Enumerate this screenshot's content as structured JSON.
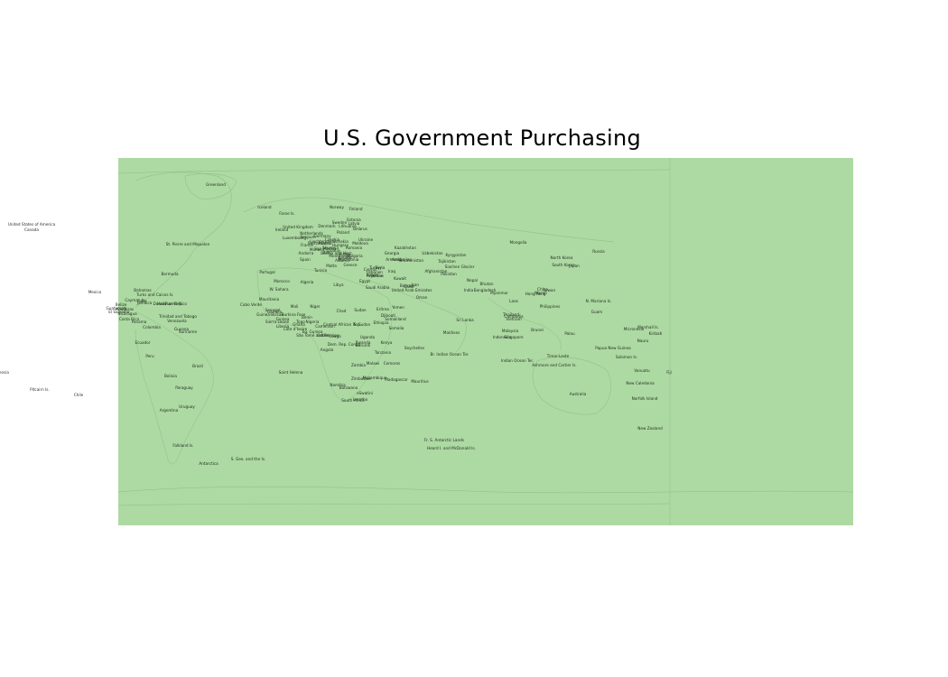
{
  "title": "U.S. Government Purchasing",
  "colors": {
    "map_fill": "#add9a3",
    "border_line": "#8fbb84",
    "label": "#1f2a1d"
  },
  "country_labels": [
    "Greenland",
    "Iceland",
    "Faroe Is.",
    "Norway",
    "Finland",
    "Estonia",
    "Latvia",
    "Lithuania",
    "Russia",
    "Sweden",
    "Denmark",
    "United Kingdom",
    "Ireland",
    "Netherlands",
    "Belgium",
    "Germany",
    "Poland",
    "Belarus",
    "Ukraine",
    "Moldova",
    "Luxembourg",
    "Czechia",
    "Slovakia",
    "Austria",
    "Hungary",
    "Romania",
    "France",
    "Switzerland",
    "Liechtenstein",
    "Slovenia",
    "Croatia",
    "Bosnia and Herz.",
    "Serbia",
    "Kosovo",
    "Montenegro",
    "Albania",
    "Macedonia",
    "Bulgaria",
    "Greece",
    "Italy",
    "San Marino",
    "Monaco",
    "Andorra",
    "Spain",
    "Portugal",
    "Malta",
    "Cyprus",
    "Turkey",
    "Georgia",
    "Armenia",
    "Azerbaijan",
    "Kazakhstan",
    "Uzbekistan",
    "Kyrgyzstan",
    "Tajikistan",
    "Turkmenistan",
    "Afghanistan",
    "Pakistan",
    "Siachen Glacier",
    "Nepal",
    "Bhutan",
    "Bangladesh",
    "India",
    "Sri Lanka",
    "Maldives",
    "Br. Indian Ocean Ter.",
    "Myanmar",
    "Laos",
    "Thailand",
    "Cambodia",
    "Vietnam",
    "Malaysia",
    "Singapore",
    "Indonesia",
    "Brunei",
    "Philippines",
    "Palau",
    "Taiwan",
    "Hong Kong",
    "Macao",
    "China",
    "Mongolia",
    "North Korea",
    "South Korea",
    "Japan",
    "N. Mariana Is.",
    "Guam",
    "Marshall Is.",
    "Micronesia",
    "Kiribati",
    "Nauru",
    "Solomon Is.",
    "Papua New Guinea",
    "Timor-Leste",
    "Ashmore and Cartier Is.",
    "Indian Ocean Ter.",
    "Australia",
    "Vanuatu",
    "New Caledonia",
    "Norfolk Island",
    "New Zealand",
    "Fiji",
    "Iran",
    "Iraq",
    "Syria",
    "Lebanon",
    "Israel",
    "Palestine",
    "Jordan",
    "Kuwait",
    "Saudi Arabia",
    "Bahrain",
    "Qatar",
    "United Arab Emirates",
    "Oman",
    "Yemen",
    "Egypt",
    "Libya",
    "Tunisia",
    "Algeria",
    "Morocco",
    "W. Sahara",
    "Mauritania",
    "Mali",
    "Niger",
    "Chad",
    "Sudan",
    "S. Sudan",
    "Eritrea",
    "Djibouti",
    "Ethiopia",
    "Somaliland",
    "Somalia",
    "Kenya",
    "Uganda",
    "Rwanda",
    "Burundi",
    "Tanzania",
    "Dem. Rep. Congo",
    "Congo",
    "Gabon",
    "Eq. Guinea",
    "Cameroon",
    "Central African Rep.",
    "Nigeria",
    "Benin",
    "Togo",
    "Ghana",
    "Burkina Faso",
    "Côte d'Ivoire",
    "Liberia",
    "Sierra Leone",
    "Guinea",
    "Guinea-Bissau",
    "Senegal",
    "Gambia",
    "Cabo Verde",
    "São Tomé and Principe",
    "Angola",
    "Zambia",
    "Malawi",
    "Mozambique",
    "Zimbabwe",
    "Botswana",
    "Namibia",
    "South Africa",
    "Lesotho",
    "eSwatini",
    "Madagascar",
    "Comoros",
    "Mauritius",
    "Seychelles",
    "Saint Helena",
    "Canada",
    "United States of America",
    "Mexico",
    "St. Pierre and Miquelon",
    "Bermuda",
    "Bahamas",
    "Turks and Caicos Is.",
    "Cuba",
    "Cayman Is.",
    "Jamaica",
    "Haiti",
    "Dominican Rep.",
    "Puerto Rico",
    "Belize",
    "Guatemala",
    "Honduras",
    "El Salvador",
    "Nicaragua",
    "Costa Rica",
    "Panama",
    "Colombia",
    "Venezuela",
    "Trinidad and Tobago",
    "Guyana",
    "Suriname",
    "Ecuador",
    "Peru",
    "Brazil",
    "Bolivia",
    "Paraguay",
    "Chile",
    "Argentina",
    "Uruguay",
    "Falkland Is.",
    "S. Geo. and the Is.",
    "Antarctica",
    "Fr. S. Antarctic Lands",
    "Heard I. and McDonald Is.",
    "Pitcairn Is.",
    "Fr. Polynesia"
  ]
}
